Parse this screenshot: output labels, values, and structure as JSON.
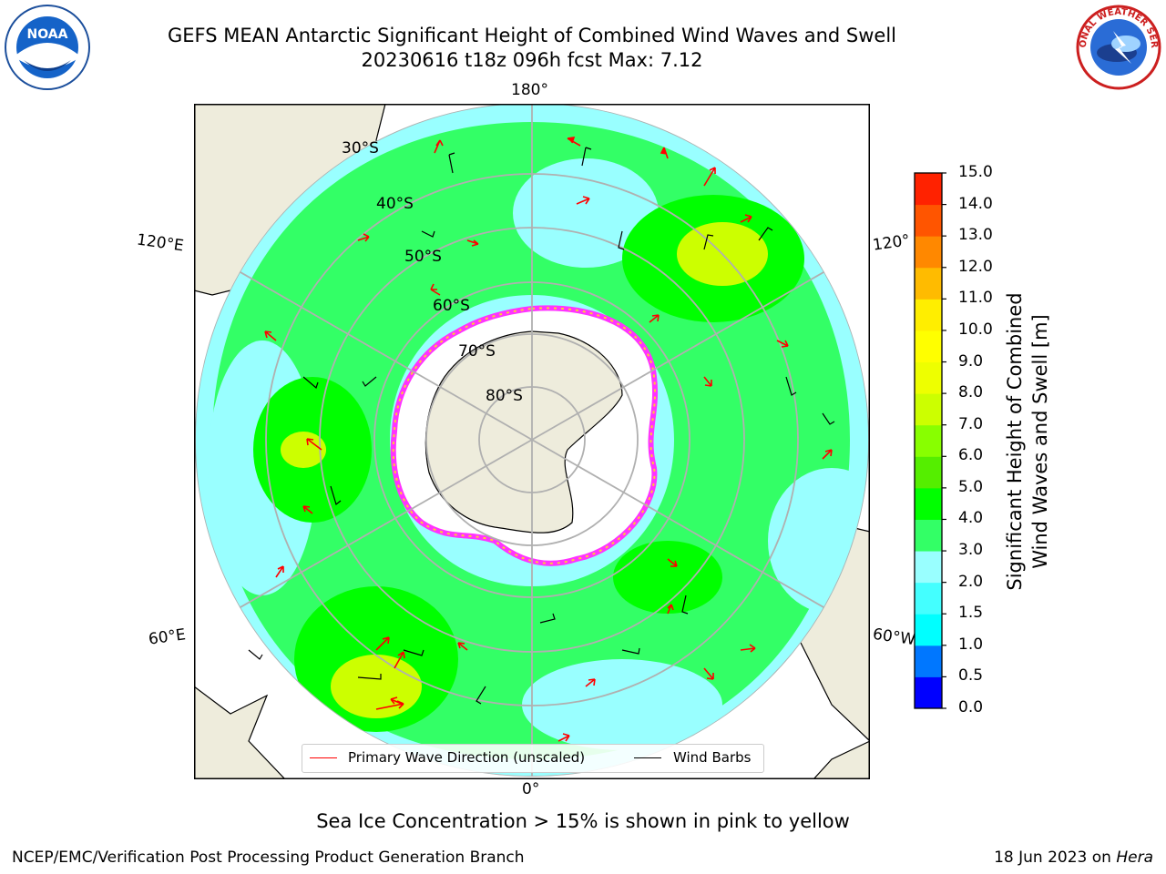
{
  "header": {
    "title_line1": "GEFS MEAN Antarctic Significant Height of Combined Wind Waves and Swell",
    "title_line2": "20230616 t18z 096h fcst   Max: 7.12"
  },
  "map": {
    "longitude_labels": {
      "top": "180°",
      "bottom": "0°",
      "left_upper": "120°E",
      "left_lower": "60°E",
      "right_upper": "120°",
      "right_lower": "60°W"
    },
    "latitude_labels": [
      "30°S",
      "40°S",
      "50°S",
      "60°S",
      "70°S",
      "80°S"
    ],
    "colors": {
      "ocean_cyan": "#99ffff",
      "ocean_green": "#33ff66",
      "ocean_bright_green": "#00ff00",
      "wave_yellow_green": "#ccff00",
      "land": "#eeecdc",
      "ice_pink": "#ff33ff",
      "ice_yellow": "#ffcc33",
      "grid": "#b0b0b0",
      "arrow": "#ff0000",
      "barb": "#000000"
    }
  },
  "legend": {
    "items": [
      {
        "label": "Primary Wave Direction (unscaled)",
        "color": "#ff0000"
      },
      {
        "label": "Wind Barbs",
        "color": "#000000"
      }
    ]
  },
  "colorbar": {
    "label_line1": "Significant Height of Combined",
    "label_line2": "Wind Waves and Swell [m]",
    "ticks": [
      "0.0",
      "0.5",
      "1.0",
      "1.5",
      "2.0",
      "3.0",
      "4.0",
      "5.0",
      "6.0",
      "7.0",
      "8.0",
      "9.0",
      "10.0",
      "11.0",
      "12.0",
      "13.0",
      "14.0",
      "15.0"
    ],
    "colors": [
      "#0000ff",
      "#0077ff",
      "#00ffff",
      "#44ffff",
      "#99ffff",
      "#33ff66",
      "#00ff00",
      "#55ee00",
      "#88ff00",
      "#ccff00",
      "#eeff00",
      "#ffff00",
      "#ffee00",
      "#ffbb00",
      "#ff8800",
      "#ff5500",
      "#ff2200"
    ]
  },
  "subtitle": "Sea Ice Concentration > 15% is shown in pink to yellow",
  "footer": {
    "left": "NCEP/EMC/Verification Post Processing Product Generation Branch",
    "right_date": "18 Jun 2023 on",
    "right_machine": "Hera"
  },
  "logos": {
    "noaa_text": "NOAA",
    "nws_text": "NATIONAL WEATHER SERVICE"
  }
}
